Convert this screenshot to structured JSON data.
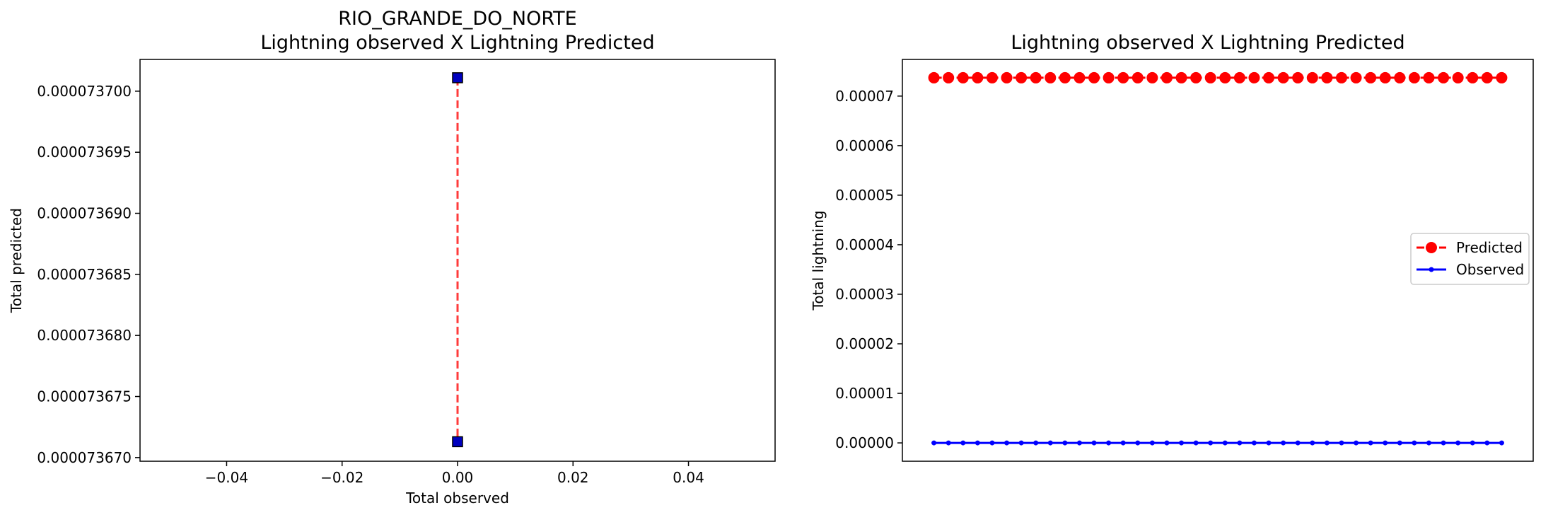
{
  "chart_data": [
    {
      "type": "scatter",
      "title": "RIO_GRANDE_DO_NORTE\nLightning observed X Lightning Predicted",
      "xlabel": "Total observed",
      "ylabel": "Total predicted",
      "xlim": [
        -0.055,
        0.055
      ],
      "ylim": [
        7.36697e-05,
        7.37026e-05
      ],
      "xticks": [
        -0.04,
        -0.02,
        0.0,
        0.02,
        0.04
      ],
      "xtick_labels": [
        "−0.04",
        "−0.02",
        "0.00",
        "0.02",
        "0.04"
      ],
      "yticks": [
        7.367e-05,
        7.3675e-05,
        7.368e-05,
        7.3685e-05,
        7.369e-05,
        7.3695e-05,
        7.37e-05
      ],
      "ytick_labels": [
        "0.000073670",
        "0.000073675",
        "0.000073680",
        "0.000073685",
        "0.000073690",
        "0.000073695",
        "0.000073700"
      ],
      "points": [
        {
          "x": 0.0,
          "y": 7.37011e-05
        },
        {
          "x": 0.0,
          "y": 7.36713e-05
        }
      ],
      "marker": "square",
      "marker_color": "#0000bf",
      "line_color": "#ff3b3b",
      "line_style": "dashed",
      "grid": false
    },
    {
      "type": "line",
      "title": "Lightning observed X Lightning Predicted",
      "xlabel": "",
      "ylabel": "Total lightning",
      "ylim": [
        -3.7e-06,
        7.74e-05
      ],
      "yticks": [
        0.0,
        1e-05,
        2e-05,
        3e-05,
        4e-05,
        5e-05,
        6e-05,
        7e-05
      ],
      "ytick_labels": [
        "0.00000",
        "0.00001",
        "0.00002",
        "0.00003",
        "0.00004",
        "0.00005",
        "0.00006",
        "0.00007"
      ],
      "x_count": 40,
      "series": [
        {
          "name": "Predicted",
          "color": "#ff0000",
          "style": "dashed",
          "marker": "o",
          "value": 7.37e-05,
          "values_all_equal": true
        },
        {
          "name": "Observed",
          "color": "#0000ff",
          "style": "solid",
          "marker": ".",
          "value": 0.0,
          "values_all_equal": true
        }
      ],
      "legend": "center-right",
      "grid": false
    }
  ]
}
